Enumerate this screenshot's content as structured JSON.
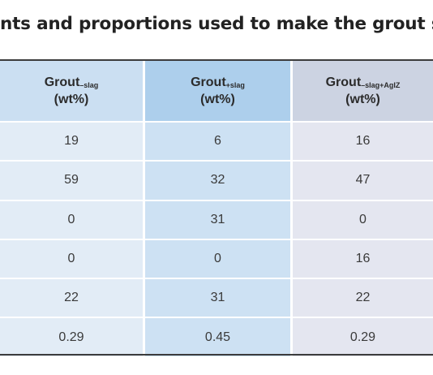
{
  "title": "nts and proportions used to make the grout sa",
  "columns": [
    {
      "base": "Grout",
      "sub": "–slag",
      "unit": "(wt%)"
    },
    {
      "base": "Grout",
      "sub": "+slag",
      "unit": "(wt%)"
    },
    {
      "base": "Grout",
      "sub": "–slag+AgIZ",
      "unit": "(wt%)"
    }
  ],
  "rows": [
    [
      "19",
      "6",
      "16"
    ],
    [
      "59",
      "32",
      "47"
    ],
    [
      "0",
      "31",
      "0"
    ],
    [
      "0",
      "0",
      "16"
    ],
    [
      "22",
      "31",
      "22"
    ],
    [
      "0.29",
      "0.45",
      "0.29"
    ]
  ],
  "colors": {
    "header_col1": "#cbdff2",
    "header_col2": "#adcfec",
    "header_col3": "#ccd3e2",
    "body_col1": "#e2ecf6",
    "body_col2": "#cde1f3",
    "body_col3": "#e4e6f0",
    "rule": "#3c3c3c"
  }
}
